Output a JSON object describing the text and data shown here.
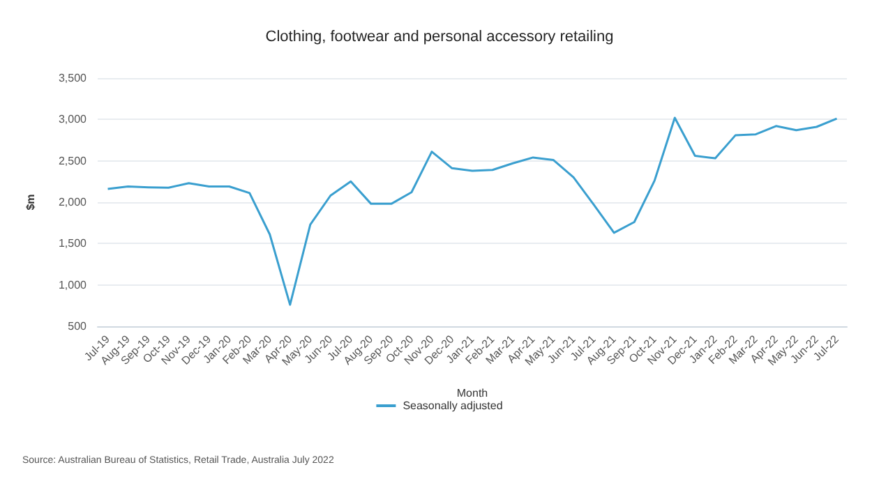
{
  "chart_data": {
    "type": "line",
    "title": "Clothing, footwear and personal accessory retailing",
    "xlabel": "Month",
    "ylabel": "$m",
    "categories": [
      "Jul-19",
      "Aug-19",
      "Sep-19",
      "Oct-19",
      "Nov-19",
      "Dec-19",
      "Jan-20",
      "Feb-20",
      "Mar-20",
      "Apr-20",
      "May-20",
      "Jun-20",
      "Jul-20",
      "Aug-20",
      "Sep-20",
      "Oct-20",
      "Nov-20",
      "Dec-20",
      "Jan-21",
      "Feb-21",
      "Mar-21",
      "Apr-21",
      "May-21",
      "Jun-21",
      "Jul-21",
      "Aug-21",
      "Sep-21",
      "Oct-21",
      "Nov-21",
      "Dec-21",
      "Jan-22",
      "Feb-22",
      "Mar-22",
      "Apr-22",
      "May-22",
      "Jun-22",
      "Jul-22"
    ],
    "series": [
      {
        "name": "Seasonally adjusted",
        "color": "#3a9fcf",
        "values": [
          2160,
          2190,
          2180,
          2175,
          2230,
          2190,
          2190,
          2110,
          1610,
          760,
          1730,
          2080,
          2250,
          1980,
          1980,
          2120,
          2610,
          2410,
          2380,
          2390,
          2470,
          2540,
          2510,
          2300,
          1970,
          1630,
          1760,
          2260,
          3020,
          2560,
          2530,
          2810,
          2820,
          2920,
          2870,
          2910,
          3010
        ]
      }
    ],
    "ylim": [
      500,
      3500
    ],
    "yticks": [
      {
        "value": 500,
        "label": "500"
      },
      {
        "value": 1000,
        "label": "1,000"
      },
      {
        "value": 1500,
        "label": "1,500"
      },
      {
        "value": 2000,
        "label": "2,000"
      },
      {
        "value": 2500,
        "label": "2,500"
      },
      {
        "value": 3000,
        "label": "3,000"
      },
      {
        "value": 3500,
        "label": "3,500"
      }
    ],
    "grid": "y",
    "legend": "bottom",
    "marker": "none",
    "line_style": "solid",
    "annotations": [
      "Source: Australian Bureau of Statistics, Retail Trade, Australia July 2022"
    ]
  }
}
